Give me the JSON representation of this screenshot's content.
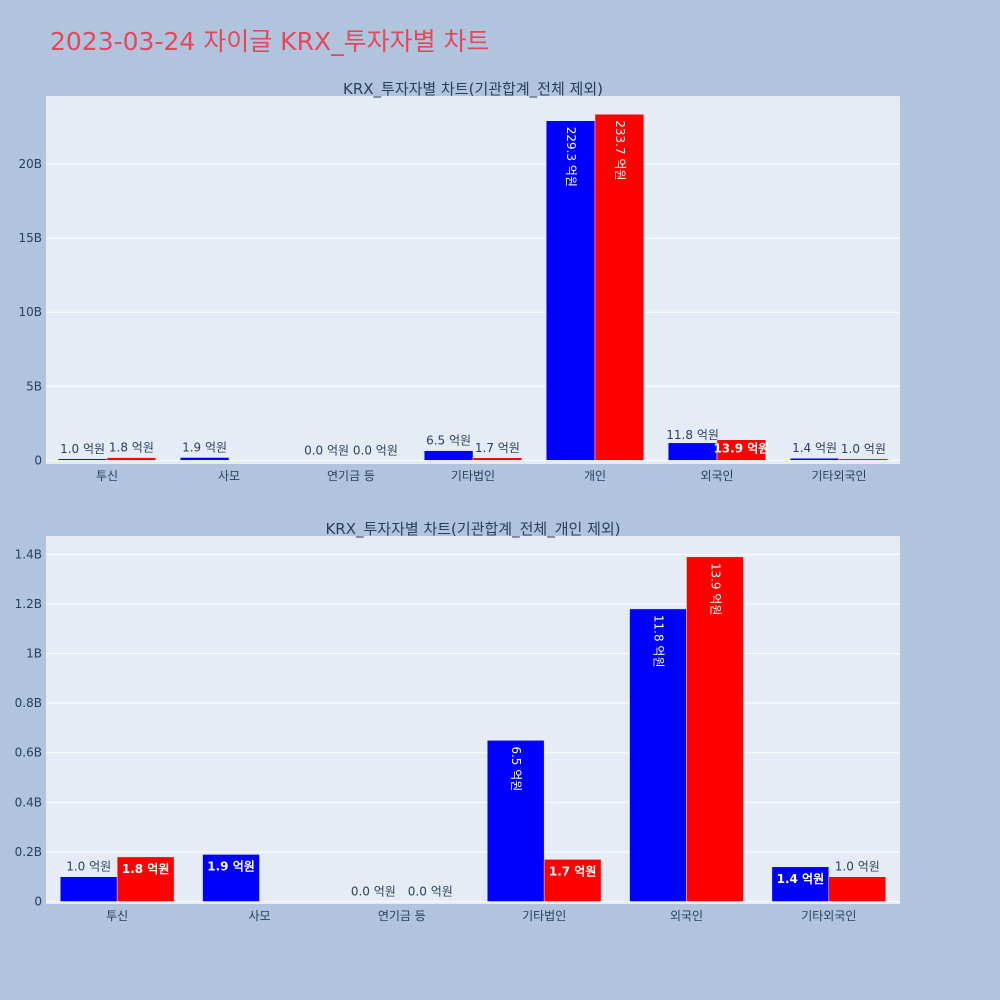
{
  "page": {
    "title": "2023-03-24 자이글 KRX_투자자별 차트",
    "background": "#b0c4de",
    "title_color": "#e8475a"
  },
  "colors": {
    "buy": "#0000ff",
    "sell": "#ff0000",
    "plot_bg": "#e5ecf6",
    "grid": "#ffffff"
  },
  "chart_data": [
    {
      "type": "bar",
      "title": "KRX_투자자별 차트(기관합계_전체 제외)",
      "categories": [
        "투신",
        "사모",
        "연기금 등",
        "기타법인",
        "개인",
        "외국인",
        "기타외국인"
      ],
      "series": [
        {
          "color": "#0000ff",
          "values": [
            0.1,
            0.19,
            0.0,
            0.65,
            22.93,
            1.18,
            0.14
          ],
          "labels": [
            "1.0 억원",
            "1.9 억원",
            "0.0 억원",
            "6.5 억원",
            "229.3 억원",
            "11.8 억원",
            "1.4 억원"
          ]
        },
        {
          "color": "#ff0000",
          "values": [
            0.18,
            null,
            0.0,
            0.17,
            23.37,
            1.39,
            0.1
          ],
          "labels": [
            "1.8 억원",
            "",
            "0.0 억원",
            "1.7 억원",
            "233.7 억원",
            "13.9 억원",
            "1.0 억원"
          ]
        }
      ],
      "yticks": [
        0,
        5,
        10,
        15,
        20
      ],
      "ytick_labels": [
        "0",
        "5B",
        "10B",
        "15B",
        "20B"
      ],
      "ylim": [
        -0.25,
        24.6
      ],
      "grid": true,
      "legend": "none"
    },
    {
      "type": "bar",
      "title": "KRX_투자자별 차트(기관합계_전체_개인 제외)",
      "categories": [
        "투신",
        "사모",
        "연기금 등",
        "기타법인",
        "외국인",
        "기타외국인"
      ],
      "series": [
        {
          "color": "#0000ff",
          "values": [
            0.1,
            0.19,
            0.0,
            0.65,
            1.18,
            0.14
          ],
          "labels": [
            "1.0 억원",
            "1.9 억원",
            "0.0 억원",
            "6.5 억원",
            "11.8 억원",
            "1.4 억원"
          ]
        },
        {
          "color": "#ff0000",
          "values": [
            0.18,
            null,
            0.0,
            0.17,
            1.39,
            0.1
          ],
          "labels": [
            "1.8 억원",
            "",
            "0.0 억원",
            "1.7 억원",
            "13.9 억원",
            "1.0 억원"
          ]
        }
      ],
      "yticks": [
        0,
        0.2,
        0.4,
        0.6,
        0.8,
        1.0,
        1.2,
        1.4
      ],
      "ytick_labels": [
        "0",
        "0.2B",
        "0.4B",
        "0.6B",
        "0.8B",
        "1B",
        "1.2B",
        "1.4B"
      ],
      "ylim": [
        -0.01,
        1.474
      ],
      "grid": true,
      "legend": "none"
    }
  ]
}
